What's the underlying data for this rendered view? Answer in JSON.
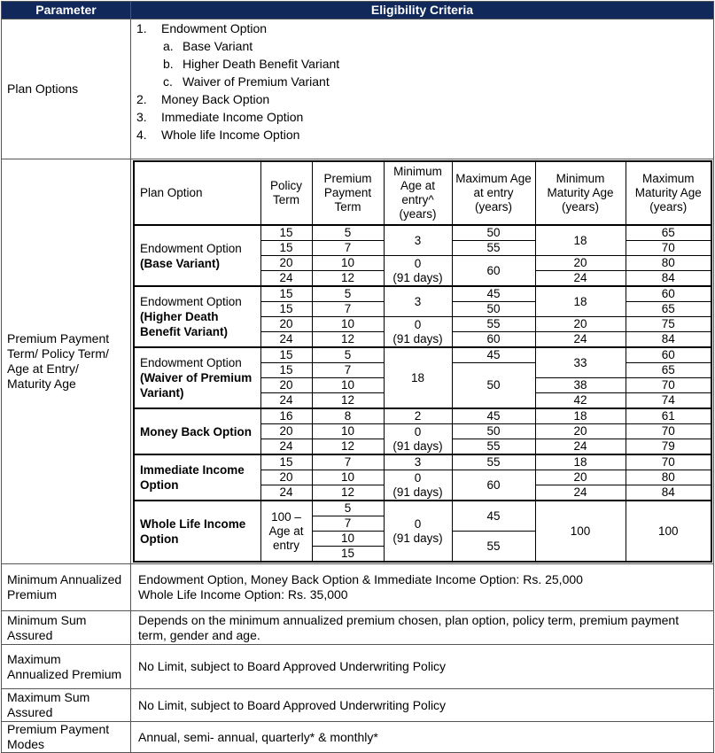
{
  "header": {
    "parameter": "Parameter",
    "criteria": "Eligibility Criteria"
  },
  "plan_options": {
    "label": "Plan Options",
    "items": [
      {
        "num": "1.",
        "text": "Endowment Option",
        "sub": [
          {
            "num": "a.",
            "text": "Base Variant"
          },
          {
            "num": "b.",
            "text": "Higher Death Benefit Variant"
          },
          {
            "num": "c.",
            "text": "Waiver of Premium Variant"
          }
        ]
      },
      {
        "num": "2.",
        "text": "Money Back Option"
      },
      {
        "num": "3.",
        "text": "Immediate Income Option"
      },
      {
        "num": "4.",
        "text": "Whole life Income Option"
      }
    ]
  },
  "terms": {
    "label": "Premium Payment Term/ Policy Term/ Age at Entry/ Maturity Age",
    "columns": [
      "Plan Option",
      "Policy Term",
      "Premium Payment Term",
      "Minimum Age at entry^ (years)",
      "Maximum Age at entry (years)",
      "Minimum Maturity Age (years)",
      "Maximum Maturity Age (years)"
    ],
    "groups": [
      {
        "name": {
          "plain": "Endowment Option",
          "bold": "(Base Variant)"
        },
        "policy_term": [
          15,
          15,
          20,
          24
        ],
        "premium_payment_term": [
          5,
          7,
          10,
          12
        ],
        "min_entry_age": [
          3,
          null,
          "0\n(91 days)",
          null
        ],
        "max_entry_age": [
          50,
          55,
          60,
          null
        ],
        "min_maturity_age": [
          18,
          null,
          20,
          24
        ],
        "max_maturity_age": [
          65,
          70,
          80,
          84
        ]
      },
      {
        "name": {
          "plain": "Endowment Option",
          "bold": "(Higher Death Benefit Variant)"
        },
        "policy_term": [
          15,
          15,
          20,
          24
        ],
        "premium_payment_term": [
          5,
          7,
          10,
          12
        ],
        "min_entry_age": [
          3,
          null,
          "0\n(91 days)",
          null
        ],
        "max_entry_age": [
          45,
          50,
          55,
          60
        ],
        "min_maturity_age": [
          18,
          null,
          20,
          24
        ],
        "max_maturity_age": [
          60,
          65,
          75,
          84
        ]
      },
      {
        "name": {
          "plain": "Endowment Option",
          "bold": "(Waiver of Premium Variant)"
        },
        "policy_term": [
          15,
          15,
          20,
          24
        ],
        "premium_payment_term": [
          5,
          7,
          10,
          12
        ],
        "min_entry_age": [
          18,
          null,
          null,
          null
        ],
        "max_entry_age": [
          45,
          50,
          null,
          null
        ],
        "min_maturity_age": [
          33,
          null,
          38,
          42
        ],
        "max_maturity_age": [
          60,
          65,
          70,
          74
        ]
      },
      {
        "name": {
          "bold": "Money Back Option"
        },
        "policy_term": [
          16,
          20,
          24
        ],
        "premium_payment_term": [
          8,
          10,
          12
        ],
        "min_entry_age": [
          2,
          "0\n(91 days)",
          null
        ],
        "max_entry_age": [
          45,
          50,
          55
        ],
        "min_maturity_age": [
          18,
          20,
          24
        ],
        "max_maturity_age": [
          61,
          70,
          79
        ]
      },
      {
        "name": {
          "bold": "Immediate Income Option"
        },
        "policy_term": [
          15,
          20,
          24
        ],
        "premium_payment_term": [
          7,
          10,
          12
        ],
        "min_entry_age": [
          3,
          "0\n(91 days)",
          null
        ],
        "max_entry_age": [
          55,
          60,
          null
        ],
        "min_maturity_age": [
          18,
          20,
          24
        ],
        "max_maturity_age": [
          70,
          80,
          84
        ]
      },
      {
        "name": {
          "bold": "Whole Life Income Option"
        },
        "policy_term": [
          "100 –\nAge at\nentry",
          null,
          null,
          null
        ],
        "premium_payment_term": [
          5,
          7,
          10,
          15
        ],
        "min_entry_age": [
          "0\n(91 days)",
          null,
          null,
          null
        ],
        "max_entry_age": [
          45,
          null,
          55,
          null
        ],
        "min_maturity_age": [
          100,
          null,
          null,
          null
        ],
        "max_maturity_age": [
          100,
          null,
          null,
          null
        ]
      }
    ]
  },
  "rows": [
    {
      "label": "Minimum Annualized Premium",
      "lines": [
        "Endowment Option, Money Back Option & Immediate Income Option: Rs. 25,000",
        "Whole Life Income Option: Rs. 35,000"
      ]
    },
    {
      "label": "Minimum Sum Assured",
      "lines": [
        "Depends on the minimum annualized premium chosen, plan option, policy term, premium payment term, gender and age."
      ]
    },
    {
      "label": "Maximum Annualized Premium",
      "lines": [
        "No Limit, subject to Board Approved Underwriting Policy"
      ]
    },
    {
      "label": "Maximum Sum Assured",
      "lines": [
        "No Limit, subject to Board Approved Underwriting Policy"
      ]
    },
    {
      "label": "Premium Payment Modes",
      "lines": [
        "Annual, semi- annual, quarterly* & monthly*"
      ]
    }
  ]
}
